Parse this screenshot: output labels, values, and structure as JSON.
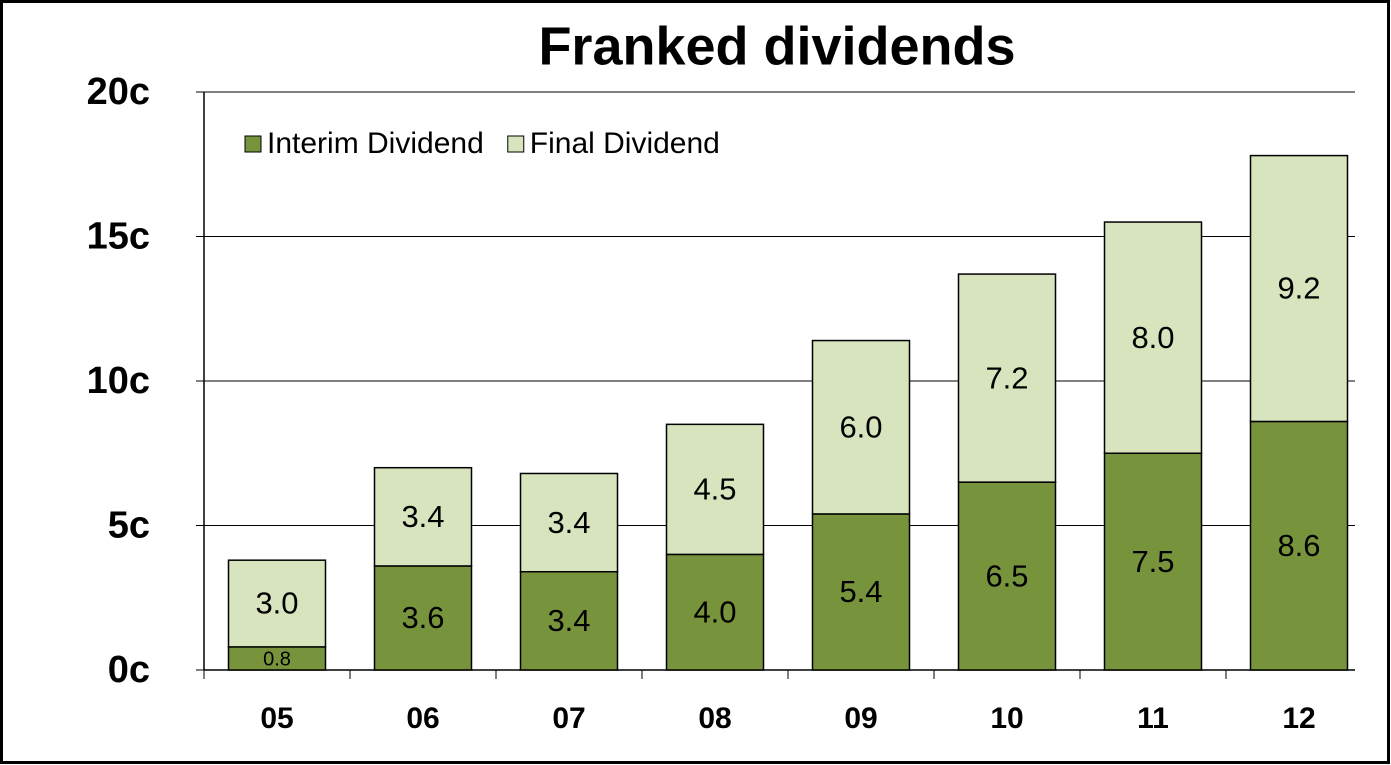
{
  "chart_data": {
    "type": "stacked_bar",
    "title": "Franked dividends",
    "categories": [
      "05",
      "06",
      "07",
      "08",
      "09",
      "10",
      "11",
      "12"
    ],
    "series": [
      {
        "name": "Interim Dividend",
        "color": "#77933c",
        "values": [
          0.8,
          3.6,
          3.4,
          4.0,
          5.4,
          6.5,
          7.5,
          8.6
        ],
        "value_labels": [
          "0.8",
          "3.6",
          "3.4",
          "4.0",
          "5.4",
          "6.5",
          "7.5",
          "8.6"
        ]
      },
      {
        "name": "Final Dividend",
        "color": "#d7e4bd",
        "values": [
          3.0,
          3.4,
          3.4,
          4.5,
          6.0,
          7.2,
          8.0,
          9.2
        ],
        "value_labels": [
          "3.0",
          "3.4",
          "3.4",
          "4.5",
          "6.0",
          "7.2",
          "8.0",
          "9.2"
        ]
      }
    ],
    "ylim": [
      0,
      20
    ],
    "yticks": [
      {
        "value": 0,
        "label": "0c"
      },
      {
        "value": 5,
        "label": "5c"
      },
      {
        "value": 10,
        "label": "10c"
      },
      {
        "value": 15,
        "label": "15c"
      },
      {
        "value": 20,
        "label": "20c"
      }
    ],
    "grid": true,
    "legend": "upper left"
  }
}
